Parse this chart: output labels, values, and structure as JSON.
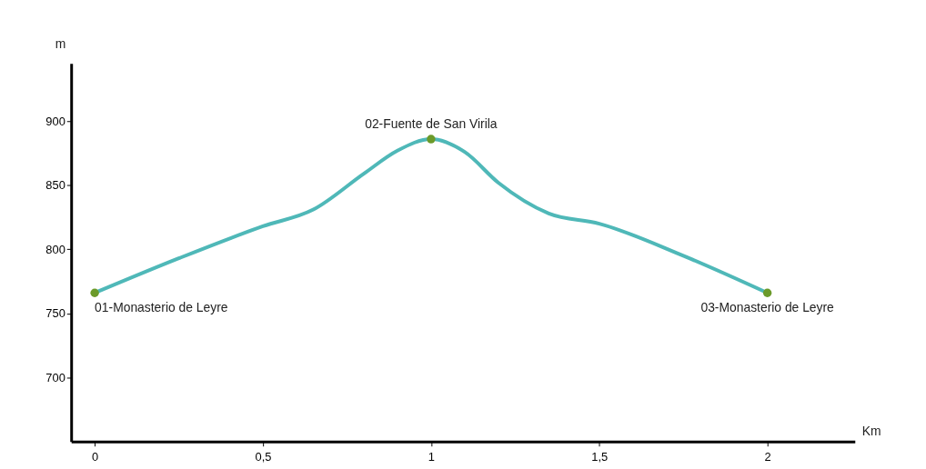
{
  "chart_data": {
    "type": "line",
    "xlabel": "Km",
    "ylabel": "m",
    "xlim": [
      -0.07,
      2.26
    ],
    "ylim": [
      650,
      945
    ],
    "xticks": [
      0,
      {
        "value": 0.5,
        "label": "0,5"
      },
      1,
      {
        "value": 1.5,
        "label": "1,5"
      },
      2
    ],
    "yticks": [
      700,
      750,
      800,
      850,
      900
    ],
    "grid": false,
    "series": [
      {
        "color": "#4fb8b8",
        "marker": "none",
        "line_style": "solid",
        "x": [
          0,
          0.25,
          0.5,
          0.65,
          0.8,
          0.9,
          1,
          1.1,
          1.2,
          1.35,
          1.5,
          1.75,
          2
        ],
        "values": [
          766,
          793,
          818,
          831,
          859,
          877,
          886,
          876,
          852,
          828,
          820,
          795,
          766
        ]
      },
      {
        "type": "scatter",
        "color": "#6b9a2a",
        "marker": "circle",
        "x": [
          0,
          1,
          2
        ],
        "values": [
          766,
          886,
          766
        ]
      }
    ],
    "annotations": [
      {
        "text": "01-Monasterio de Leyre",
        "x": 0,
        "y": 766
      },
      {
        "text": "02-Fuente de San Virila",
        "x": 1,
        "y": 886
      },
      {
        "text": "03-Monasterio de Leyre",
        "x": 2,
        "y": 766
      }
    ]
  }
}
